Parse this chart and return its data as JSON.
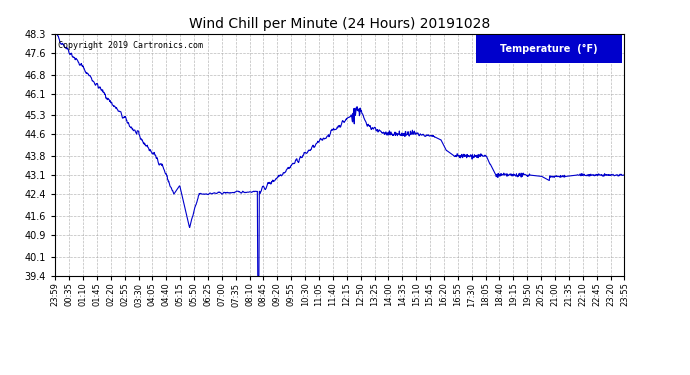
{
  "title": "Wind Chill per Minute (24 Hours) 20191028",
  "copyright": "Copyright 2019 Cartronics.com",
  "legend_label": "Temperature  (°F)",
  "y_ticks": [
    39.4,
    40.1,
    40.9,
    41.6,
    42.4,
    43.1,
    43.8,
    44.6,
    45.3,
    46.1,
    46.8,
    47.6,
    48.3
  ],
  "ylim": [
    39.4,
    48.3
  ],
  "x_labels": [
    "23:59",
    "00:35",
    "01:10",
    "01:45",
    "02:20",
    "02:55",
    "03:30",
    "04:05",
    "04:40",
    "05:15",
    "05:50",
    "06:25",
    "07:00",
    "07:35",
    "08:10",
    "08:45",
    "09:20",
    "09:55",
    "10:30",
    "11:05",
    "11:40",
    "12:15",
    "12:50",
    "13:25",
    "14:00",
    "14:35",
    "15:10",
    "15:45",
    "16:20",
    "16:55",
    "17:30",
    "18:05",
    "18:40",
    "19:15",
    "19:50",
    "20:25",
    "21:00",
    "21:35",
    "22:10",
    "22:45",
    "23:20",
    "23:55"
  ],
  "line_color": "#0000CC",
  "bg_color": "#FFFFFF",
  "plot_bg": "#FFFFFF",
  "grid_color": "#AAAAAA",
  "title_color": "#000000",
  "legend_bg": "#0000CC",
  "legend_text_color": "#FFFFFF",
  "fig_width": 6.9,
  "fig_height": 3.75,
  "dpi": 100
}
